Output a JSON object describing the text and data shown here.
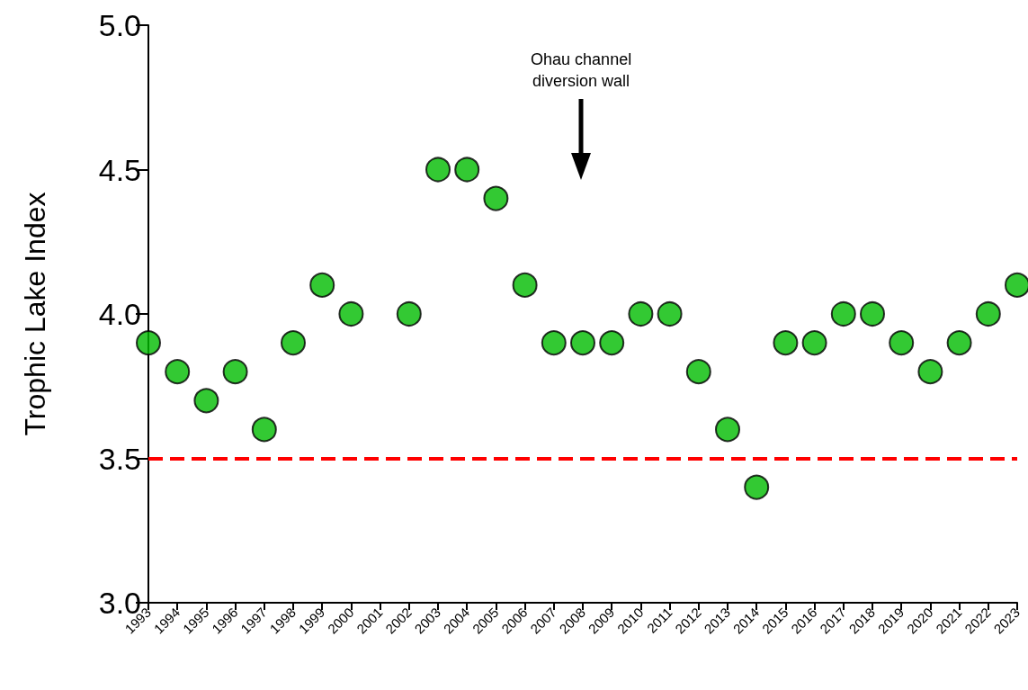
{
  "chart_data": {
    "type": "scatter",
    "ylabel": "Trophic Lake Index",
    "categories": [
      "1993",
      "1994",
      "1995",
      "1996",
      "1997",
      "1998",
      "1999",
      "2000",
      "2001",
      "2002",
      "2003",
      "2004",
      "2005",
      "2006",
      "2007",
      "2008",
      "2009",
      "2010",
      "2011",
      "2012",
      "2013",
      "2014",
      "2015",
      "2016",
      "2017",
      "2018",
      "2019",
      "2020",
      "2021",
      "2022",
      "2023"
    ],
    "values": [
      3.9,
      3.8,
      3.7,
      3.8,
      3.6,
      3.9,
      4.1,
      4.0,
      null,
      4.0,
      4.5,
      4.5,
      4.4,
      4.1,
      3.9,
      3.9,
      3.9,
      4.0,
      4.0,
      3.8,
      3.6,
      3.4,
      3.9,
      3.9,
      4.0,
      4.0,
      3.9,
      3.8,
      3.9,
      4.0,
      4.1
    ],
    "color": "#00bb00",
    "marker": "circle",
    "grid": false,
    "ylim": [
      3.0,
      5.0
    ],
    "yticks": [
      {
        "value": 3.0,
        "label": "3.0"
      },
      {
        "value": 3.5,
        "label": "3.5"
      },
      {
        "value": 4.0,
        "label": "4.0"
      },
      {
        "value": 4.5,
        "label": "4.5"
      },
      {
        "value": 5.0,
        "label": "5.0"
      }
    ],
    "ref_lines": [
      {
        "axis": "y",
        "value": 3.5,
        "color": "#ff0000",
        "line_style": "dashed"
      }
    ],
    "annotations": [
      "Ohau channel\ndiversion wall"
    ]
  }
}
